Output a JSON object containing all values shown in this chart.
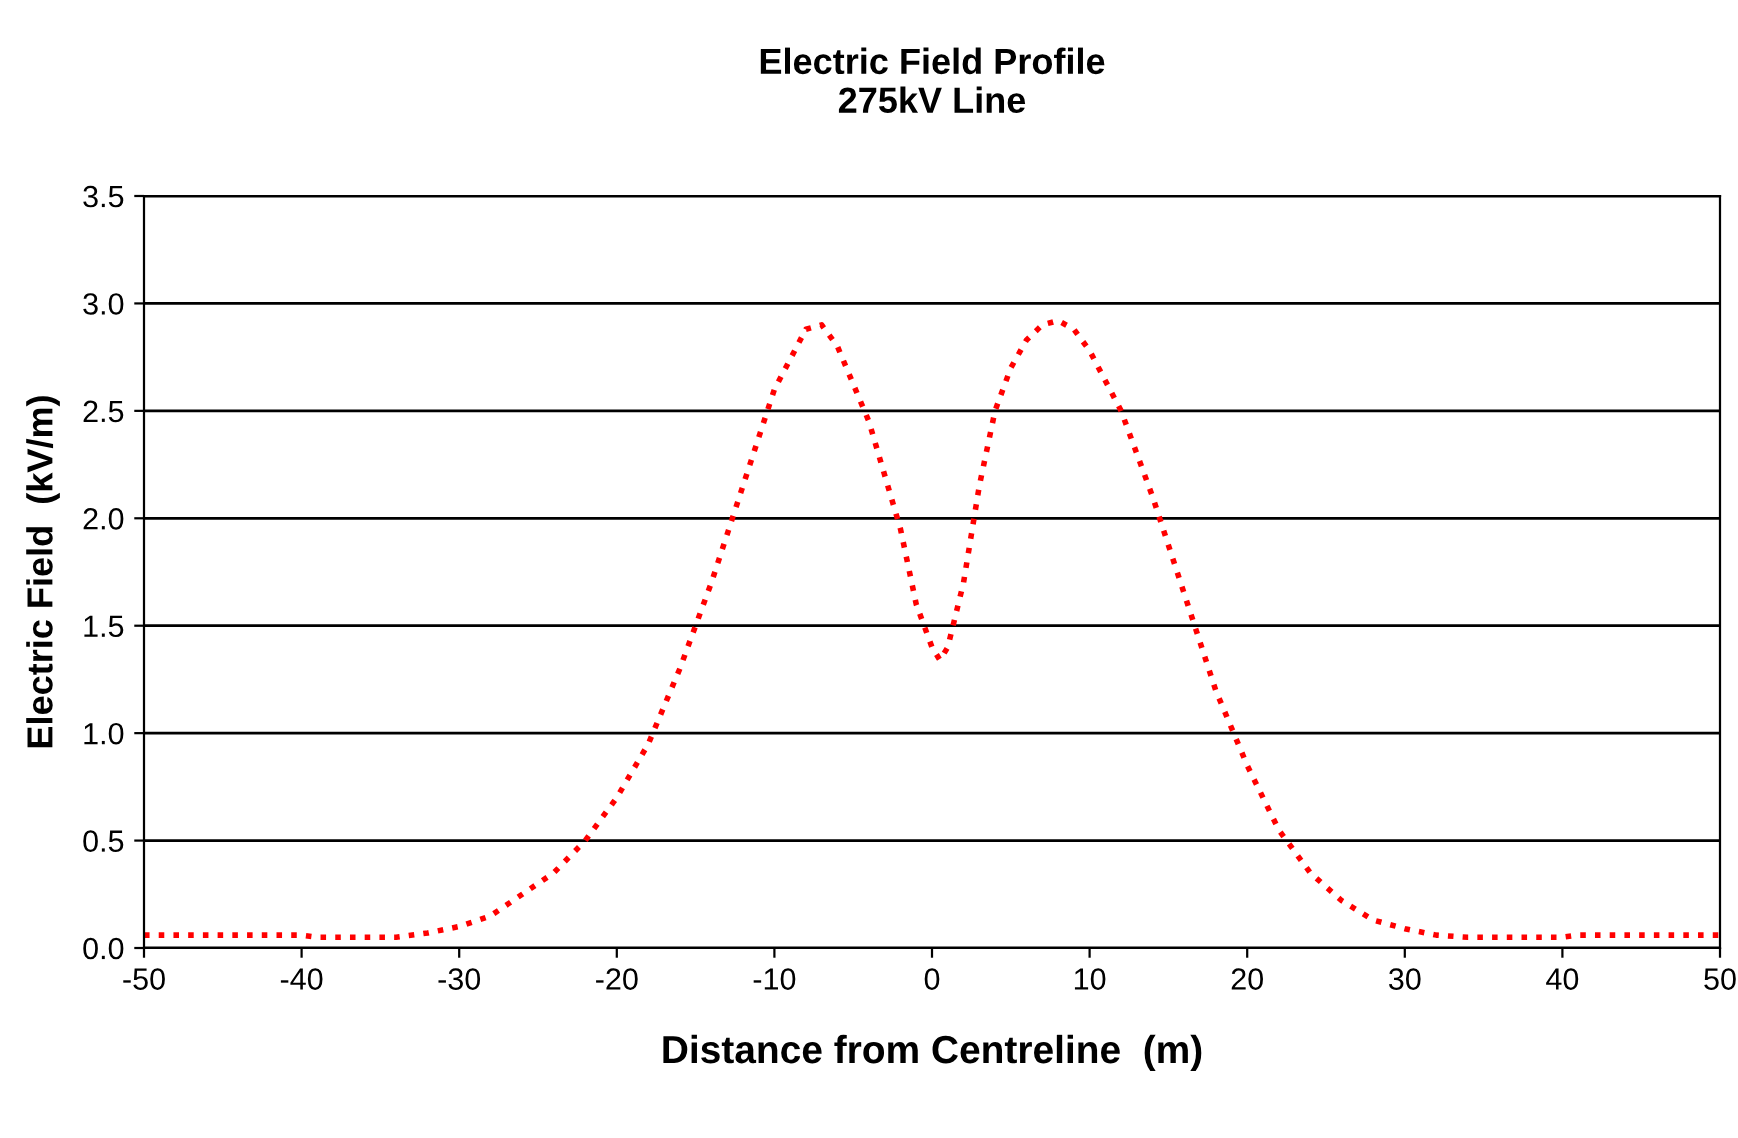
{
  "chart_data": {
    "type": "line",
    "title": "Electric Field Profile\n275kV Line",
    "xlabel": "Distance from Centreline  (m)",
    "ylabel": "Electric Field  (kV/m)",
    "x": [
      -50,
      -40,
      -39,
      -34,
      -32,
      -30,
      -28,
      -26,
      -24,
      -22,
      -20,
      -18,
      -16,
      -14,
      -12,
      -10,
      -8,
      -7,
      -6,
      -4,
      -2,
      -1,
      0,
      0.5,
      1,
      2,
      3,
      4,
      5,
      6,
      7,
      8,
      9,
      10,
      12,
      14,
      16,
      18,
      20,
      22,
      24,
      26,
      28,
      30,
      32,
      34,
      40,
      41,
      50
    ],
    "series": [
      {
        "color": "#ff0000",
        "values": [
          0.06,
          0.06,
          0.05,
          0.05,
          0.07,
          0.1,
          0.15,
          0.25,
          0.35,
          0.5,
          0.7,
          0.95,
          1.3,
          1.7,
          2.15,
          2.6,
          2.88,
          2.9,
          2.8,
          2.45,
          1.95,
          1.6,
          1.4,
          1.34,
          1.4,
          1.7,
          2.15,
          2.5,
          2.7,
          2.83,
          2.9,
          2.92,
          2.88,
          2.78,
          2.5,
          2.1,
          1.65,
          1.2,
          0.85,
          0.55,
          0.35,
          0.22,
          0.13,
          0.09,
          0.06,
          0.05,
          0.05,
          0.06,
          0.06
        ]
      }
    ],
    "xlim": [
      -50,
      50
    ],
    "xticks": [
      -50,
      -40,
      -30,
      -20,
      -10,
      0,
      10,
      20,
      30,
      40,
      50
    ],
    "ylim": [
      0,
      3.5
    ],
    "yticks": [
      {
        "value": 0,
        "label": "0.0"
      },
      {
        "value": 0.5,
        "label": "0.5"
      },
      {
        "value": 1,
        "label": "1.0"
      },
      {
        "value": 1.5,
        "label": "1.5"
      },
      {
        "value": 2,
        "label": "2.0"
      },
      {
        "value": 2.5,
        "label": "2.5"
      },
      {
        "value": 3,
        "label": "3.0"
      },
      {
        "value": 3.5,
        "label": "3.5"
      }
    ],
    "grid": "y",
    "line_style": "dotted",
    "marker": "none"
  }
}
